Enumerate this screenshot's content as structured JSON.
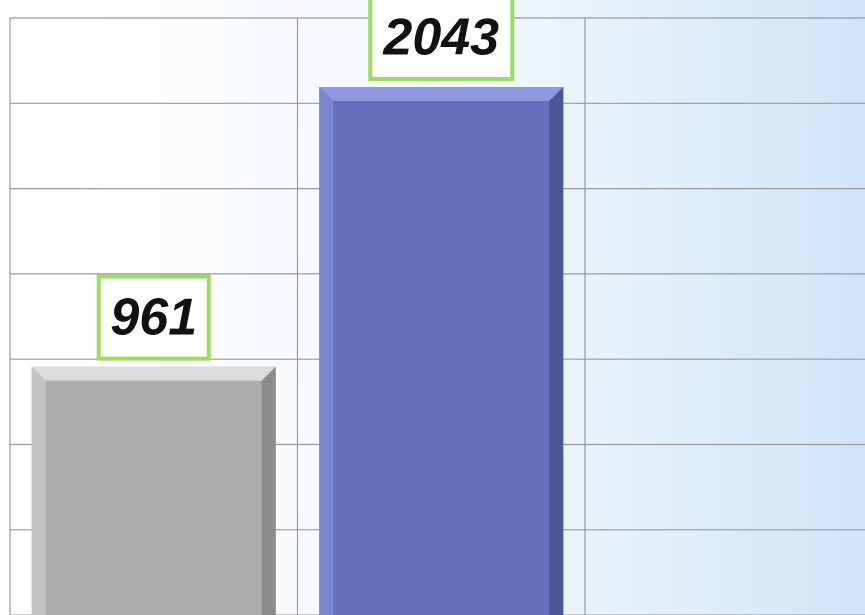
{
  "chart_data": {
    "type": "bar",
    "categories": [
      null,
      null
    ],
    "values": [
      961,
      2043
    ],
    "colors": [
      "#adadad",
      "#6370bd"
    ],
    "ylim": [
      0,
      2310
    ]
  }
}
